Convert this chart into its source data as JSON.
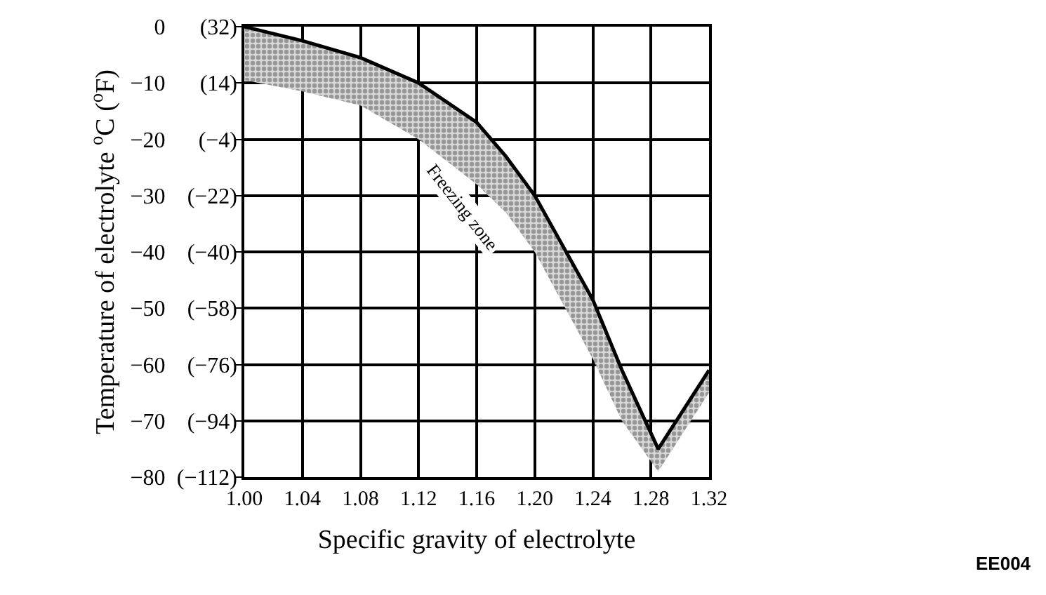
{
  "chart_data": {
    "type": "line",
    "xlabel": "Specific gravity of electrolyte",
    "ylabel": "Temperature of electrolyte $^{o}$C ($^{o}$F)",
    "x": [
      1.0,
      1.04,
      1.08,
      1.12,
      1.16,
      1.18,
      1.2,
      1.24,
      1.26,
      1.285,
      1.32
    ],
    "series": [
      {
        "color": "#000000",
        "values": [
          0,
          -2.5,
          -5.5,
          -10,
          -17,
          -23,
          -30,
          -48.5,
          -61,
          -75,
          -61
        ],
        "lower": [
          -9.5,
          -11.5,
          -14,
          -20,
          -28,
          -33,
          -40,
          -59,
          -70,
          -79,
          -65
        ],
        "upper": [
          0,
          -2.5,
          -5.5,
          -10,
          -17,
          -23,
          -30,
          -48.5,
          -61,
          -75,
          -61
        ]
      }
    ],
    "xlim": [
      1.0,
      1.32
    ],
    "xticks": [
      {
        "value": 1.0,
        "label": "1.00"
      },
      {
        "value": 1.04,
        "label": "1.04"
      },
      {
        "value": 1.08,
        "label": "1.08"
      },
      {
        "value": 1.12,
        "label": "1.12"
      },
      {
        "value": 1.16,
        "label": "1.16"
      },
      {
        "value": 1.2,
        "label": "1.20"
      },
      {
        "value": 1.24,
        "label": "1.24"
      },
      {
        "value": 1.28,
        "label": "1.28"
      },
      {
        "value": 1.32,
        "label": "1.32"
      }
    ],
    "ylim": [
      -80,
      0
    ],
    "yticks": [
      {
        "value": 0,
        "label": "0"
      },
      {
        "value": -10,
        "label": "−10"
      },
      {
        "value": -20,
        "label": "−20"
      },
      {
        "value": -30,
        "label": "−30"
      },
      {
        "value": -40,
        "label": "−40"
      },
      {
        "value": -50,
        "label": "−50"
      },
      {
        "value": -60,
        "label": "−60"
      },
      {
        "value": -70,
        "label": "−70"
      },
      {
        "value": -80,
        "label": "−80"
      }
    ],
    "y2lim": [
      -112,
      32
    ],
    "y2ticks": [
      {
        "value": 32,
        "label": "(32)"
      },
      {
        "value": 14,
        "label": "(14)"
      },
      {
        "value": -4,
        "label": "(−4)"
      },
      {
        "value": -22,
        "label": "(−22)"
      },
      {
        "value": -40,
        "label": "(−40)"
      },
      {
        "value": -58,
        "label": "(−58)"
      },
      {
        "value": -76,
        "label": "(−76)"
      },
      {
        "value": -94,
        "label": "(−94)"
      },
      {
        "value": -112,
        "label": "(−112)"
      }
    ],
    "annotations": [
      "Freezing zone",
      "EE004"
    ],
    "grid": true,
    "marker": "none",
    "line_style": "solid"
  }
}
